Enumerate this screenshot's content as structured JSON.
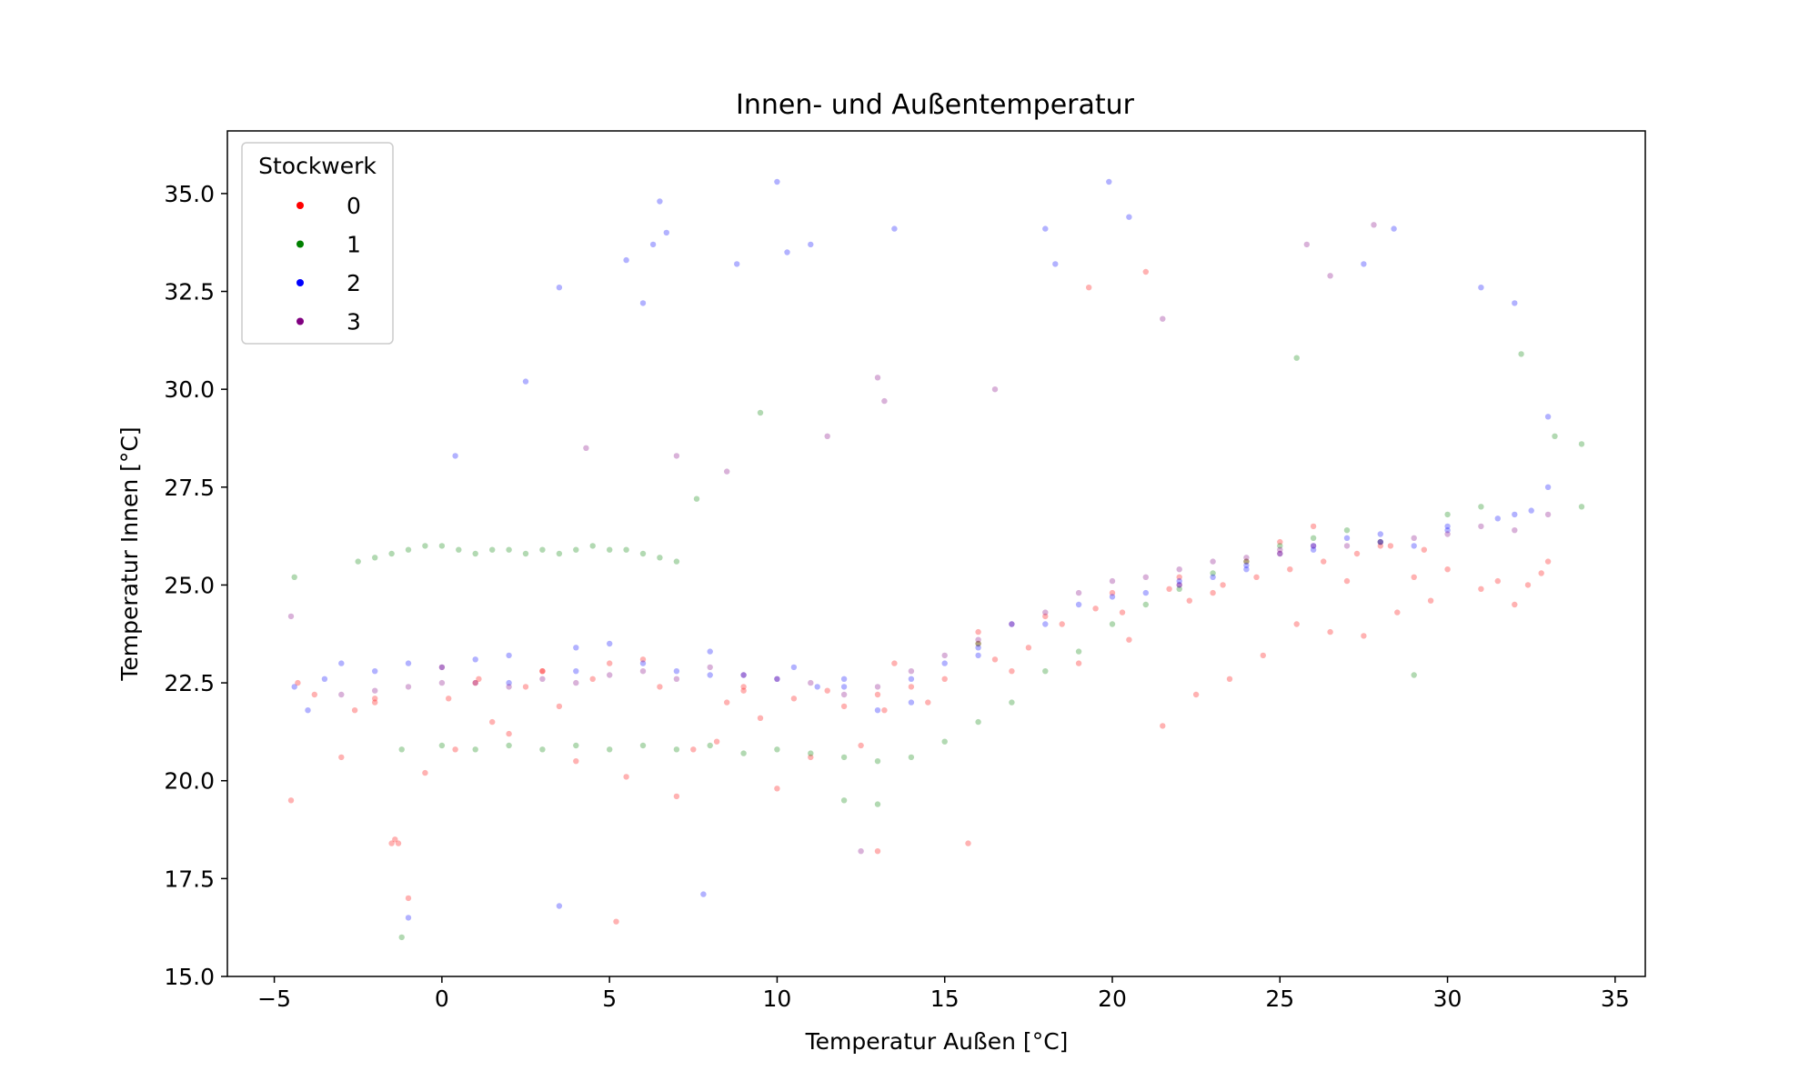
{
  "chart_data": {
    "type": "scatter",
    "title": "Innen- und Außentemperatur",
    "xlabel": "Temperatur Außen [°C]",
    "ylabel": "Temperatur Innen [°C]",
    "xlim": [
      -6.4,
      35.9
    ],
    "ylim": [
      15.0,
      36.6
    ],
    "x_ticks": [
      -5,
      0,
      5,
      10,
      15,
      20,
      25,
      30,
      35
    ],
    "x_tick_labels": [
      "−5",
      "0",
      "5",
      "10",
      "15",
      "20",
      "25",
      "30",
      "35"
    ],
    "y_ticks": [
      15.0,
      17.5,
      20.0,
      22.5,
      25.0,
      27.5,
      30.0,
      32.5,
      35.0
    ],
    "y_tick_labels": [
      "15.0",
      "17.5",
      "20.0",
      "22.5",
      "25.0",
      "27.5",
      "30.0",
      "32.5",
      "35.0"
    ],
    "grid": false,
    "legend": {
      "title": "Stockwerk",
      "placement": "upper-left"
    },
    "marker_alpha": 0.3,
    "series": [
      {
        "name": "0",
        "color": "#ff0000",
        "x": [
          -4.5,
          -4.3,
          -3.8,
          -2.6,
          -1.4,
          -1.3,
          -1.0,
          -0.5,
          0.2,
          0.4,
          1.1,
          2.0,
          3.0,
          4.0,
          5.2,
          6.0,
          7.0,
          8.2,
          9.0,
          10.0,
          11.0,
          12.0,
          13.0,
          13.5,
          14.5,
          15.7,
          16.0,
          17.0,
          18.0,
          19.0,
          19.3,
          20.0,
          20.5,
          21.0,
          21.5,
          22.0,
          22.5,
          23.0,
          23.5,
          24.0,
          24.5,
          25.0,
          25.5,
          26.0,
          26.5,
          27.0,
          27.5,
          28.0,
          28.5,
          29.0,
          29.5,
          30.0,
          31.0,
          32.0,
          32.4,
          33.0,
          -3.0,
          -2.0,
          -1.5,
          0.0,
          1.5,
          2.5,
          3.5,
          4.5,
          5.5,
          6.5,
          7.5,
          8.5,
          9.5,
          10.5,
          11.5,
          12.5,
          13.2,
          14.0,
          15.0,
          16.5,
          17.5,
          18.5,
          20.3,
          21.7,
          22.3,
          23.3,
          24.3,
          25.3,
          26.3,
          27.3,
          28.3,
          29.3,
          31.5,
          32.8,
          -2.0,
          1.0,
          3.0,
          5.0,
          9.0,
          13.0,
          16.0,
          19.5,
          22.0,
          25.0
        ],
        "y": [
          19.5,
          22.5,
          22.2,
          21.8,
          18.5,
          18.4,
          17.0,
          20.2,
          22.1,
          20.8,
          22.6,
          21.2,
          22.8,
          20.5,
          16.4,
          23.1,
          19.6,
          21.0,
          22.3,
          19.8,
          20.6,
          21.9,
          18.2,
          23.0,
          22.0,
          18.4,
          23.8,
          22.8,
          24.2,
          23.0,
          32.6,
          24.8,
          23.6,
          33.0,
          21.4,
          25.2,
          22.2,
          24.8,
          22.6,
          25.6,
          23.2,
          26.1,
          24.0,
          26.5,
          23.8,
          25.1,
          23.7,
          26.0,
          24.3,
          25.2,
          24.6,
          25.4,
          24.9,
          24.5,
          25.0,
          25.6,
          20.6,
          22.1,
          18.4,
          22.9,
          21.5,
          22.4,
          21.9,
          22.6,
          20.1,
          22.4,
          20.8,
          22.0,
          21.6,
          22.1,
          22.3,
          20.9,
          21.8,
          22.4,
          22.6,
          23.1,
          23.4,
          24.0,
          24.3,
          24.9,
          24.6,
          25.0,
          25.2,
          25.4,
          25.6,
          25.8,
          26.0,
          25.9,
          25.1,
          25.3,
          22.0,
          22.5,
          22.8,
          23.0,
          22.4,
          22.2,
          23.5,
          24.4,
          25.0,
          25.8
        ]
      },
      {
        "name": "1",
        "color": "#008000",
        "x": [
          -4.4,
          -2.5,
          -2.0,
          -1.5,
          -1.0,
          -0.5,
          0.0,
          0.5,
          1.0,
          1.5,
          2.0,
          2.5,
          3.0,
          3.5,
          4.0,
          4.5,
          5.0,
          5.5,
          6.0,
          6.5,
          7.0,
          -1.2,
          0.0,
          1.0,
          2.0,
          3.0,
          4.0,
          5.0,
          6.0,
          7.0,
          8.0,
          9.0,
          10.0,
          11.0,
          12.0,
          13.0,
          14.0,
          15.0,
          16.0,
          17.0,
          18.0,
          19.0,
          20.0,
          21.0,
          22.0,
          23.0,
          24.0,
          25.0,
          25.5,
          26.0,
          27.0,
          28.0,
          29.0,
          30.0,
          31.0,
          32.2,
          33.2,
          34.0,
          34.0,
          7.6,
          9.5,
          -1.2,
          12.0,
          13.0,
          16.0
        ],
        "y": [
          25.2,
          25.6,
          25.7,
          25.8,
          25.9,
          26.0,
          26.0,
          25.9,
          25.8,
          25.9,
          25.9,
          25.8,
          25.9,
          25.8,
          25.9,
          26.0,
          25.9,
          25.9,
          25.8,
          25.7,
          25.6,
          20.8,
          20.9,
          20.8,
          20.9,
          20.8,
          20.9,
          20.8,
          20.9,
          20.8,
          20.9,
          20.7,
          20.8,
          20.7,
          20.6,
          20.5,
          20.6,
          21.0,
          21.5,
          22.0,
          22.8,
          23.3,
          24.0,
          24.5,
          24.9,
          25.3,
          25.6,
          26.0,
          30.8,
          26.2,
          26.4,
          26.1,
          22.7,
          26.8,
          27.0,
          30.9,
          28.8,
          28.6,
          27.0,
          27.2,
          29.4,
          16.0,
          19.5,
          19.4,
          23.5
        ]
      },
      {
        "name": "2",
        "color": "#0000ff",
        "x": [
          -4.4,
          -4.0,
          -3.5,
          -3.0,
          -2.0,
          -1.0,
          0.0,
          0.4,
          1.0,
          2.0,
          2.5,
          3.5,
          4.0,
          5.0,
          5.5,
          6.0,
          6.3,
          6.5,
          6.7,
          7.0,
          8.0,
          8.8,
          9.0,
          10.0,
          10.3,
          10.5,
          11.0,
          11.2,
          12.0,
          13.0,
          13.5,
          14.0,
          15.0,
          16.0,
          17.0,
          18.0,
          18.3,
          19.0,
          19.9,
          20.5,
          21.0,
          22.0,
          23.0,
          24.0,
          25.0,
          26.0,
          27.0,
          27.5,
          28.0,
          28.4,
          29.0,
          30.0,
          31.0,
          31.5,
          32.0,
          32.5,
          33.0,
          33.0,
          3.5,
          7.8,
          -1.0,
          2.0,
          4.0,
          6.0,
          8.0,
          10.0,
          12.0,
          14.0,
          16.0,
          18.0,
          20.0,
          22.0,
          24.0,
          26.0,
          28.0,
          30.0,
          32.0
        ],
        "y": [
          22.4,
          21.8,
          22.6,
          23.0,
          22.8,
          23.0,
          22.9,
          28.3,
          23.1,
          23.2,
          30.2,
          32.6,
          23.4,
          23.5,
          33.3,
          32.2,
          33.7,
          34.8,
          34.0,
          22.8,
          23.3,
          33.2,
          22.7,
          35.3,
          33.5,
          22.9,
          33.7,
          22.4,
          22.6,
          21.8,
          34.1,
          22.6,
          23.0,
          23.4,
          24.0,
          34.1,
          33.2,
          24.5,
          35.3,
          34.4,
          24.8,
          25.0,
          25.2,
          25.5,
          25.8,
          26.0,
          26.2,
          33.2,
          26.3,
          34.1,
          26.0,
          26.5,
          32.6,
          26.7,
          32.2,
          26.9,
          27.5,
          29.3,
          16.8,
          17.1,
          16.5,
          22.5,
          22.8,
          23.0,
          22.7,
          22.6,
          22.4,
          22.0,
          23.2,
          24.0,
          24.7,
          25.1,
          25.4,
          25.9,
          26.1,
          26.4,
          26.8
        ]
      },
      {
        "name": "3",
        "color": "#800080",
        "x": [
          -4.5,
          -3.0,
          -2.0,
          -1.0,
          0.0,
          1.0,
          2.0,
          3.0,
          4.0,
          5.0,
          6.0,
          7.0,
          8.0,
          9.0,
          10.0,
          11.0,
          12.0,
          12.5,
          13.0,
          14.0,
          15.0,
          16.0,
          17.0,
          18.0,
          19.0,
          20.0,
          21.0,
          22.0,
          23.0,
          24.0,
          25.0,
          25.8,
          26.0,
          27.0,
          27.8,
          28.0,
          29.0,
          30.0,
          31.0,
          32.0,
          33.0,
          4.3,
          7.0,
          8.5,
          11.5,
          13.0,
          13.2,
          16.5,
          21.5,
          26.5
        ],
        "y": [
          24.2,
          22.2,
          22.3,
          22.4,
          22.5,
          22.5,
          22.4,
          22.6,
          22.5,
          22.7,
          22.8,
          22.6,
          22.9,
          22.7,
          22.6,
          22.5,
          22.2,
          18.2,
          22.4,
          22.8,
          23.2,
          23.6,
          24.0,
          24.3,
          24.8,
          25.1,
          25.2,
          25.4,
          25.6,
          25.7,
          25.9,
          33.7,
          26.0,
          26.0,
          34.2,
          26.1,
          26.2,
          26.3,
          26.5,
          26.4,
          26.8,
          28.5,
          28.3,
          27.9,
          28.8,
          30.3,
          29.7,
          30.0,
          31.8,
          32.9
        ]
      }
    ]
  }
}
